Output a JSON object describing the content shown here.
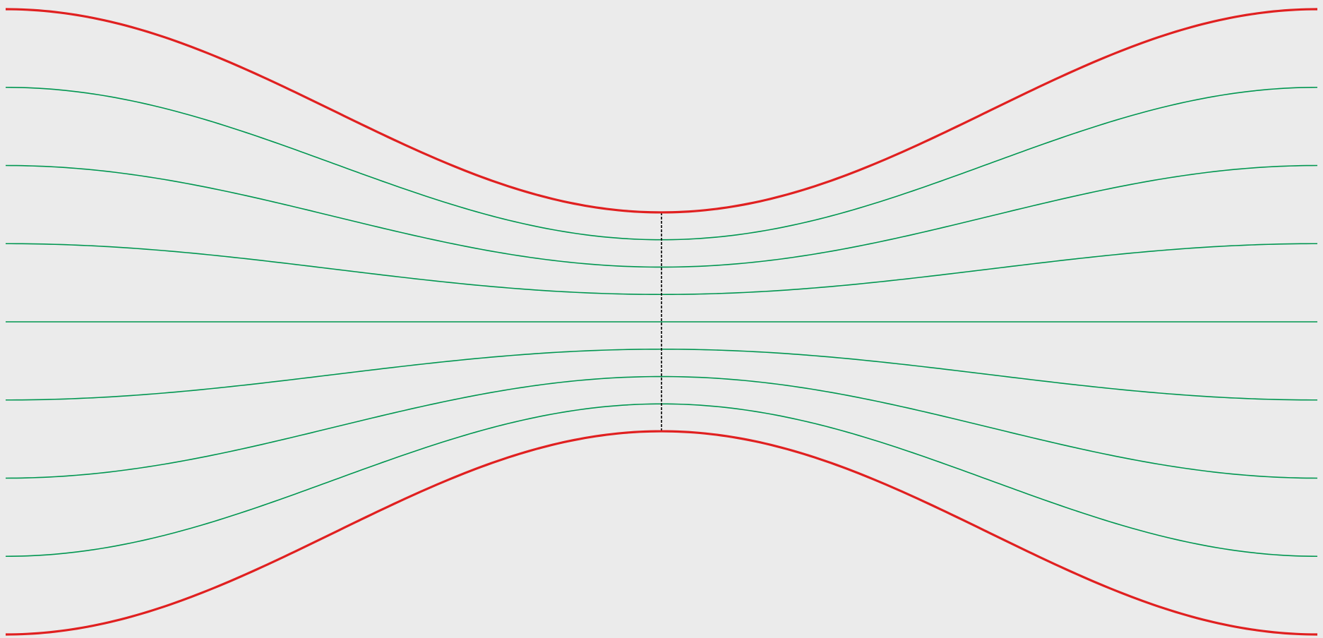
{
  "colors": {
    "background": "#ebebeb",
    "wall": "#e02020",
    "streamline": "#009650",
    "throat": "#000000"
  },
  "channel": {
    "description_free": true,
    "inlet_half_width": 1.0,
    "throat_half_width": 0.35,
    "profile": "cosine"
  },
  "streamlines": {
    "count": 7,
    "fractions": [
      -0.75,
      -0.5,
      -0.25,
      0.0,
      0.25,
      0.5,
      0.75
    ]
  },
  "walls": {
    "fractions": [
      -1.0,
      1.0
    ]
  },
  "throat_line": {
    "style": "dashed"
  }
}
